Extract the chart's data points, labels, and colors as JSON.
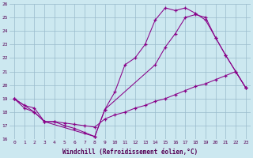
{
  "xlabel": "Windchill (Refroidissement éolien,°C)",
  "bg_color": "#cce8f0",
  "line_color": "#880088",
  "grid_color": "#99bbcc",
  "xlim": [
    -0.5,
    23.5
  ],
  "ylim": [
    16,
    26
  ],
  "yticks": [
    16,
    17,
    18,
    19,
    20,
    21,
    22,
    23,
    24,
    25,
    26
  ],
  "xticks": [
    0,
    1,
    2,
    3,
    4,
    5,
    6,
    7,
    8,
    9,
    10,
    11,
    12,
    13,
    14,
    15,
    16,
    17,
    18,
    19,
    20,
    21,
    22,
    23
  ],
  "line1": {
    "x": [
      0,
      1,
      2,
      3,
      4,
      5,
      6,
      7,
      8,
      9,
      10,
      11,
      12,
      13,
      14,
      15,
      16,
      17,
      18,
      19,
      20,
      21,
      22,
      23
    ],
    "y": [
      19.0,
      18.3,
      18.0,
      17.3,
      17.3,
      17.0,
      16.8,
      16.5,
      16.2,
      18.2,
      19.5,
      21.5,
      22.0,
      23.0,
      24.8,
      25.7,
      25.5,
      25.7,
      25.3,
      24.8,
      23.5,
      22.2,
      21.0,
      19.8
    ]
  },
  "line2": {
    "x": [
      0,
      2,
      3,
      8,
      9,
      14,
      15,
      16,
      17,
      18,
      19,
      20,
      21,
      23
    ],
    "y": [
      19.0,
      18.0,
      17.3,
      16.2,
      18.2,
      21.5,
      22.8,
      23.8,
      25.0,
      25.2,
      25.0,
      23.5,
      22.2,
      19.8
    ]
  },
  "line3": {
    "x": [
      0,
      1,
      2,
      3,
      4,
      5,
      6,
      7,
      8,
      9,
      10,
      11,
      12,
      13,
      14,
      15,
      16,
      17,
      18,
      19,
      20,
      21,
      22,
      23
    ],
    "y": [
      19.0,
      18.5,
      18.3,
      17.3,
      17.3,
      17.2,
      17.1,
      17.0,
      16.9,
      17.5,
      17.8,
      18.0,
      18.3,
      18.5,
      18.8,
      19.0,
      19.3,
      19.6,
      19.9,
      20.1,
      20.4,
      20.7,
      21.0,
      19.8
    ]
  }
}
